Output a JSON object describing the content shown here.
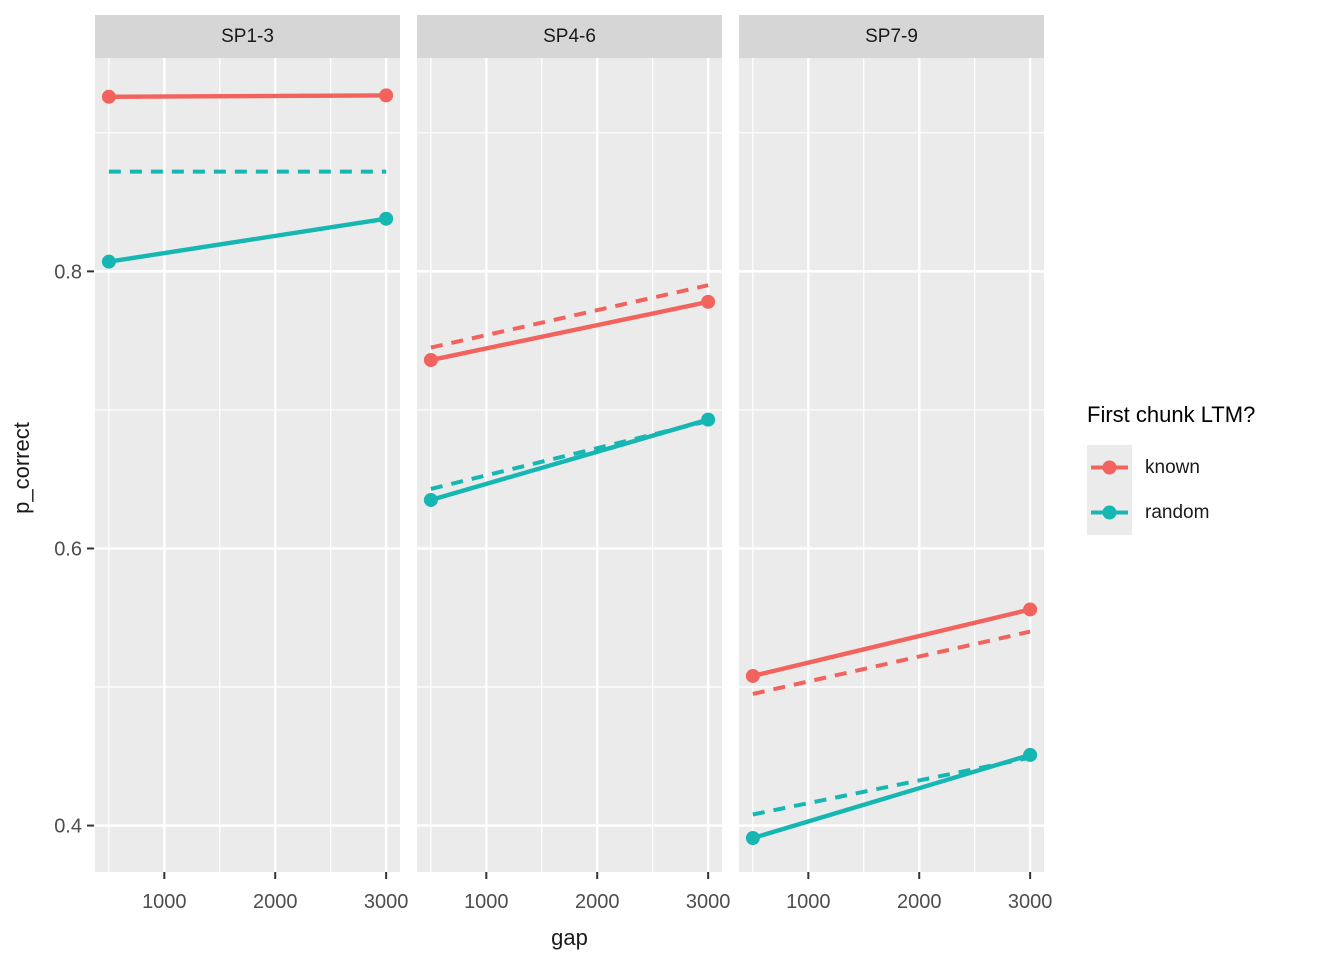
{
  "legend": {
    "title": "First chunk LTM?",
    "entries": [
      {
        "label": "known",
        "color": "#F2635D"
      },
      {
        "label": "random",
        "color": "#16B7B2"
      }
    ]
  },
  "colors": {
    "known": "#F2635D",
    "random": "#16B7B2",
    "panel_bg": "#EBEBEB",
    "strip_bg": "#D6D6D6",
    "grid": "#FFFFFF",
    "tick_mark": "#333333",
    "tick_text": "#4D4D4D",
    "axis_title": "#1A1A1A"
  },
  "chart_data": {
    "type": "line",
    "title": "",
    "xlabel": "gap",
    "ylabel": "p_correct",
    "legend_position": "right",
    "grid": true,
    "x": [
      500,
      3000
    ],
    "x_ticks": [
      1000,
      2000,
      3000
    ],
    "x_minor": [
      500,
      1500,
      2500
    ],
    "xlim": [
      375,
      3125
    ],
    "y_ticks": [
      0.4,
      0.6,
      0.8
    ],
    "y_tick_labels": [
      "0.4",
      "0.6",
      "0.8"
    ],
    "y_minor": [
      0.5,
      0.7,
      0.9
    ],
    "ylim": [
      0.3665,
      0.954
    ],
    "facets": [
      {
        "label": "SP1-3",
        "series": [
          {
            "name": "known-dashed",
            "group": "known",
            "style": "dashed",
            "values": [
              0.926,
              0.927
            ]
          },
          {
            "name": "random-dashed",
            "group": "random",
            "style": "dashed",
            "values": [
              0.872,
              0.872
            ]
          },
          {
            "name": "known-solid",
            "group": "known",
            "style": "solid",
            "values": [
              0.926,
              0.927
            ]
          },
          {
            "name": "random-solid",
            "group": "random",
            "style": "solid",
            "values": [
              0.807,
              0.838
            ]
          }
        ]
      },
      {
        "label": "SP4-6",
        "series": [
          {
            "name": "known-dashed",
            "group": "known",
            "style": "dashed",
            "values": [
              0.745,
              0.79
            ]
          },
          {
            "name": "random-dashed",
            "group": "random",
            "style": "dashed",
            "values": [
              0.643,
              0.692
            ]
          },
          {
            "name": "known-solid",
            "group": "known",
            "style": "solid",
            "values": [
              0.736,
              0.778
            ]
          },
          {
            "name": "random-solid",
            "group": "random",
            "style": "solid",
            "values": [
              0.635,
              0.693
            ]
          }
        ]
      },
      {
        "label": "SP7-9",
        "series": [
          {
            "name": "known-dashed",
            "group": "known",
            "style": "dashed",
            "values": [
              0.495,
              0.54
            ]
          },
          {
            "name": "random-dashed",
            "group": "random",
            "style": "dashed",
            "values": [
              0.408,
              0.449
            ]
          },
          {
            "name": "known-solid",
            "group": "known",
            "style": "solid",
            "values": [
              0.508,
              0.556
            ]
          },
          {
            "name": "random-solid",
            "group": "random",
            "style": "solid",
            "values": [
              0.391,
              0.451
            ]
          }
        ]
      }
    ]
  }
}
